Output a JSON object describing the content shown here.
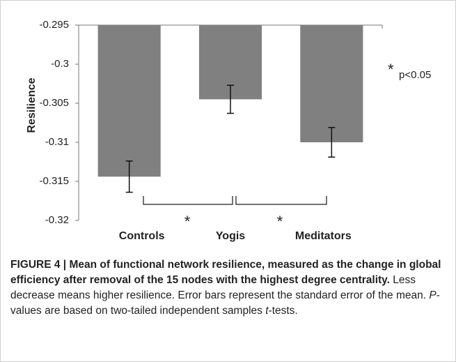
{
  "chart_data": {
    "type": "bar",
    "y_label": "Resilience",
    "categories": [
      "Controls",
      "Yogis",
      "Meditators"
    ],
    "values": [
      -0.3144,
      -0.3045,
      -0.31
    ],
    "errors": [
      0.002,
      0.0018,
      0.0019
    ],
    "color": "#808080",
    "ylim": [
      -0.32,
      -0.295
    ],
    "yticks": [
      -0.295,
      -0.3,
      -0.305,
      -0.31,
      -0.315,
      -0.32
    ],
    "significance_markers": [
      "*",
      "*"
    ],
    "legend_symbol": "*",
    "legend_text": "p<0.05"
  },
  "caption": {
    "label": "FIGURE 4 |",
    "title": "Mean of functional network resilience, measured as the change in global efficiency after removal of the 15 nodes with the highest degree centrality.",
    "text_1": "Less decrease means higher resilience. Error bars represent the standard error of the mean.",
    "italic_1": "P",
    "text_2": "-values are based on two-tailed independent samples",
    "italic_2": "t",
    "text_3": "-tests."
  }
}
